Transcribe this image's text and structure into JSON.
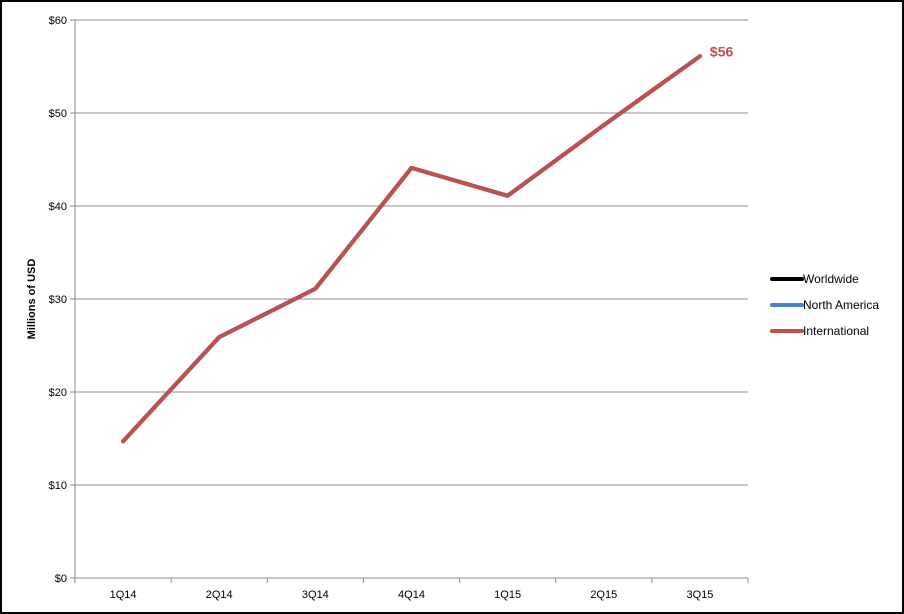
{
  "chart_data": {
    "type": "line",
    "categories": [
      "1Q14",
      "2Q14",
      "3Q14",
      "4Q14",
      "1Q15",
      "2Q15",
      "3Q15"
    ],
    "ylabel": "Millions of USD",
    "ylim": [
      0,
      60
    ],
    "yticks": [
      0,
      10,
      20,
      30,
      40,
      50,
      60
    ],
    "ytick_labels": [
      "$0",
      "$10",
      "$20",
      "$30",
      "$40",
      "$50",
      "$60"
    ],
    "grid": "horizontal",
    "legend_position": "right",
    "series": [
      {
        "name": "Worldwide",
        "color": "#000000",
        "values": [
          14.7,
          25.9,
          31.1,
          44.1,
          41.1,
          48.7,
          56.1
        ]
      },
      {
        "name": "North America",
        "color": "#4f81bd",
        "values": [
          14.7,
          25.9,
          31.1,
          44.1,
          41.1,
          48.7,
          56.1
        ]
      },
      {
        "name": "International",
        "color": "#c0504d",
        "values": [
          14.7,
          25.9,
          31.1,
          44.1,
          41.1,
          48.7,
          56.1
        ]
      }
    ],
    "annotations": [
      {
        "text": "$56",
        "series": "International",
        "category": "3Q15",
        "color": "#c0504d"
      }
    ]
  }
}
